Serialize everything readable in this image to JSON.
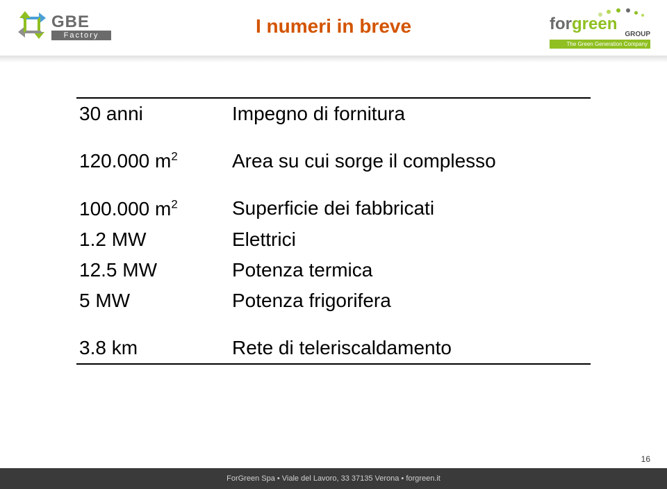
{
  "header": {
    "logo_left": {
      "text": "GBE",
      "subtext": "Factory",
      "icon_colors": {
        "top": "#4aa0d8",
        "right": "#8fbf21",
        "bottom": "#8f8f8f",
        "left": "#8fbf21"
      }
    },
    "title": "I numeri in breve",
    "logo_right": {
      "name_for": "for",
      "name_green": "green",
      "group": "GROUP",
      "tagline": "The Green Generation Company",
      "dot_colors": [
        "#cde28f",
        "#b6d957",
        "#8fbf21",
        "#6b6b6b",
        "#8fbf21",
        "#b6d957"
      ]
    }
  },
  "rows": [
    {
      "key": "30 anni",
      "value": "Impegno di fornitura"
    },
    {
      "key": "120.000 m²",
      "value": "Area su cui sorge il complesso"
    },
    {
      "key": "100.000 m²",
      "value": "Superficie dei fabbricati"
    },
    {
      "key": "1.2 MW",
      "value": "Elettrici"
    },
    {
      "key": "12.5 MW",
      "value": "Potenza termica"
    },
    {
      "key": "5 MW",
      "value": "Potenza frigorifera"
    },
    {
      "key": "3.8 km",
      "value": "Rete di teleriscaldamento"
    }
  ],
  "footer": "ForGreen Spa • Viale del Lavoro, 33 37135 Verona • forgreen.it",
  "page_number": "16",
  "colors": {
    "title": "#d35400",
    "accent_green": "#8fbf21",
    "text_gray": "#6b6b6b",
    "footer_bg": "#3a3a3a"
  }
}
